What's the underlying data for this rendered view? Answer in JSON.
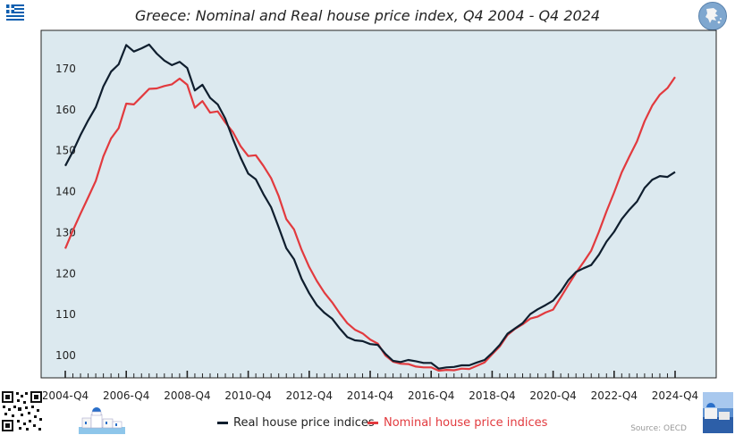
{
  "title": "Greece: Nominal and Real house price index, Q4 2004 - Q4 2024",
  "source": "Source: OECD",
  "colors": {
    "plot_bg": "#dce9ef",
    "real": "#0f1e2e",
    "nominal": "#e23a3e"
  },
  "icons": [
    "greece-flag-icon",
    "greece-map-globe-icon",
    "qr-code-icon",
    "santorini-town-icon",
    "santorini-photo-icon"
  ],
  "chart_data": {
    "type": "line",
    "title": "Greece: Nominal and Real house price index, Q4 2004 - Q4 2024",
    "xlabel": "",
    "ylabel": "",
    "x_tick_labels": [
      "2004-Q4",
      "2006-Q4",
      "2008-Q4",
      "2010-Q4",
      "2012-Q4",
      "2014-Q4",
      "2016-Q4",
      "2018-Q4",
      "2020-Q4",
      "2022-Q4",
      "2024-Q4"
    ],
    "y_ticks": [
      100,
      110,
      120,
      130,
      140,
      150,
      160,
      170
    ],
    "ylim": [
      95,
      178
    ],
    "grid": false,
    "legend_position": "bottom-center",
    "series": [
      {
        "name": "Real house price indices",
        "color": "#0f1e2e",
        "values": [
          146.3,
          149.8,
          153.8,
          157.4,
          160.6,
          165.7,
          169.3,
          171.1,
          175.8,
          174.2,
          175.0,
          175.9,
          173.7,
          172.0,
          170.9,
          171.7,
          170.2,
          164.7,
          166.1,
          162.9,
          161.3,
          157.8,
          152.8,
          148.3,
          144.4,
          143.0,
          139.4,
          136.2,
          131.3,
          126.2,
          123.5,
          118.7,
          115.2,
          112.3,
          110.4,
          109.0,
          106.6,
          104.5,
          103.7,
          103.5,
          102.8,
          102.6,
          100.4,
          98.7,
          98.4,
          98.9,
          98.6,
          98.2,
          98.2,
          96.8,
          97.1,
          97.2,
          97.6,
          97.6,
          98.3,
          98.9,
          100.6,
          102.6,
          105.3,
          106.6,
          107.9,
          110.1,
          111.3,
          112.3,
          113.4,
          115.6,
          118.4,
          120.4,
          121.3,
          122.1,
          124.6,
          127.8,
          130.2,
          133.3,
          135.6,
          137.6,
          140.9,
          142.9,
          143.8,
          143.6,
          144.8
        ]
      },
      {
        "name": "Nominal house price indices",
        "color": "#e23a3e",
        "values": [
          126.1,
          130.5,
          134.6,
          138.6,
          142.6,
          148.6,
          153.0,
          155.5,
          161.5,
          161.3,
          163.2,
          165.1,
          165.2,
          165.8,
          166.2,
          167.6,
          166.1,
          160.5,
          162.1,
          159.3,
          159.6,
          156.9,
          154.5,
          151.1,
          148.7,
          148.9,
          146.3,
          143.3,
          138.9,
          133.3,
          130.8,
          125.8,
          121.6,
          118.2,
          115.3,
          113.0,
          110.3,
          107.9,
          106.3,
          105.4,
          103.9,
          102.9,
          100.0,
          98.5,
          98.0,
          97.9,
          97.3,
          97.1,
          97.1,
          96.3,
          96.5,
          96.4,
          96.8,
          96.7,
          97.5,
          98.3,
          100.3,
          102.2,
          105.0,
          106.5,
          107.6,
          109.0,
          109.5,
          110.5,
          111.2,
          114.2,
          117.2,
          120.2,
          122.8,
          125.6,
          130.2,
          135.2,
          139.8,
          144.7,
          148.6,
          152.3,
          157.2,
          161.0,
          163.7,
          165.3,
          168.0
        ]
      }
    ]
  },
  "legend": {
    "real": "Real house price indices",
    "nominal": "Nominal house price indices"
  }
}
